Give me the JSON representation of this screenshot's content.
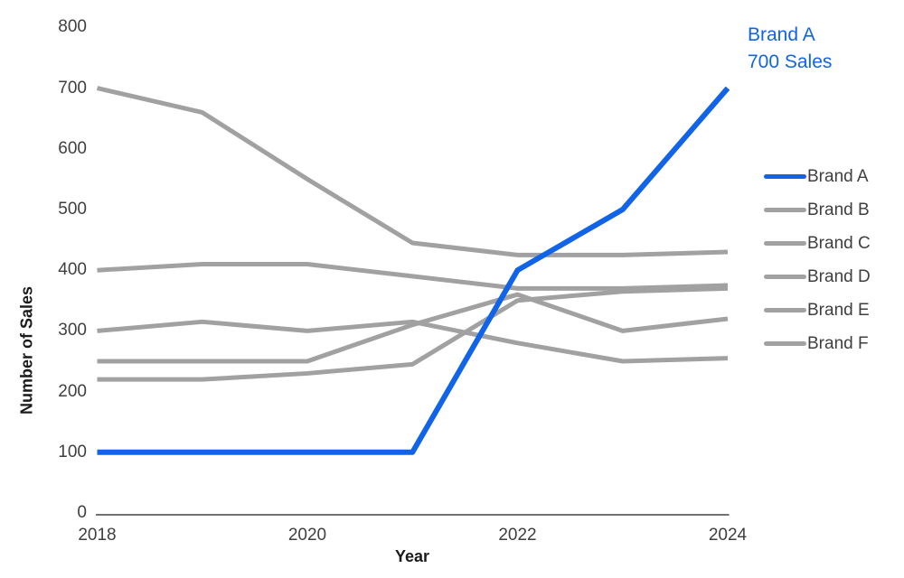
{
  "chart_data": {
    "type": "line",
    "title": "",
    "xlabel": "Year",
    "ylabel": "Number of Sales",
    "x": [
      2018,
      2019,
      2020,
      2021,
      2022,
      2023,
      2024
    ],
    "xticks": [
      2018,
      2020,
      2022,
      2024
    ],
    "yticks": [
      0,
      100,
      200,
      300,
      400,
      500,
      600,
      700,
      800
    ],
    "xlim": [
      2018,
      2024
    ],
    "ylim": [
      0,
      800
    ],
    "grid": false,
    "legend_position": "right",
    "series": [
      {
        "name": "Brand A",
        "color": "#1164e8",
        "values": [
          100,
          100,
          100,
          100,
          400,
          500,
          700
        ]
      },
      {
        "name": "Brand B",
        "color": "#a1a1a1",
        "values": [
          700,
          660,
          550,
          445,
          425,
          425,
          430
        ]
      },
      {
        "name": "Brand C",
        "color": "#a1a1a1",
        "values": [
          400,
          410,
          410,
          390,
          370,
          370,
          375
        ]
      },
      {
        "name": "Brand D",
        "color": "#a1a1a1",
        "values": [
          300,
          315,
          300,
          315,
          280,
          250,
          255
        ]
      },
      {
        "name": "Brand E",
        "color": "#a1a1a1",
        "values": [
          250,
          250,
          250,
          310,
          360,
          300,
          320
        ]
      },
      {
        "name": "Brand F",
        "color": "#a1a1a1",
        "values": [
          220,
          220,
          230,
          245,
          350,
          365,
          370
        ]
      }
    ],
    "annotation": {
      "lines": [
        "Brand A",
        "700 Sales"
      ],
      "color": "#1164e8"
    },
    "axis_line_color": "#717171",
    "highlight_series": "Brand A"
  }
}
